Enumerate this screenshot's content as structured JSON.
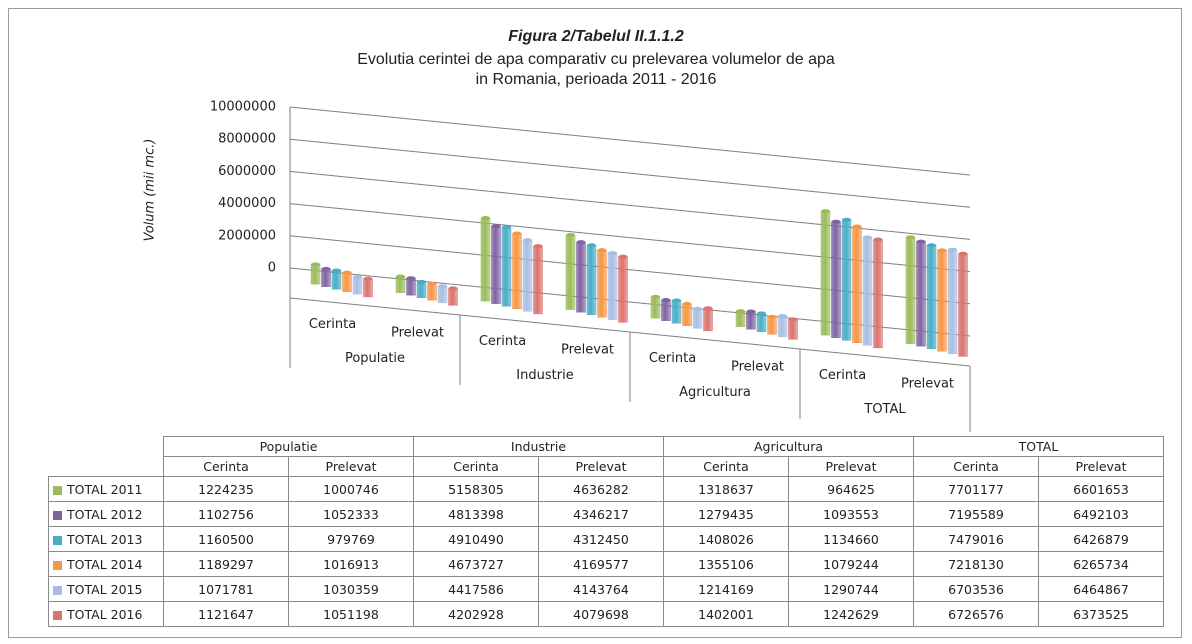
{
  "chart_data": {
    "type": "bar3d",
    "title": "Figura 2/Tabelul II.1.1.2",
    "subtitle": [
      "Evolutia cerintei de apa comparativ cu prelevarea volumelor de apa",
      "in Romania, perioada 2011 - 2016"
    ],
    "y_label": "Volum (mii mc.)",
    "groups": [
      "Populatie",
      "Industrie",
      "Agricultura",
      "TOTAL"
    ],
    "categories": [
      "Cerinta",
      "Prelevat",
      "Cerinta",
      "Prelevat",
      "Cerinta",
      "Prelevat",
      "Cerinta",
      "Prelevat"
    ],
    "ylim": [
      0,
      10000000
    ],
    "yticks": [
      0,
      2000000,
      4000000,
      6000000,
      8000000,
      10000000
    ],
    "grid": true,
    "series": [
      {
        "name": "TOTAL 2011",
        "color": "#9bbb59",
        "values": [
          1224235,
          1000746,
          5158305,
          4636282,
          1318637,
          964625,
          7701177,
          6601653
        ]
      },
      {
        "name": "TOTAL 2012",
        "color": "#8064a2",
        "values": [
          1102756,
          1052333,
          4813398,
          4346217,
          1279435,
          1093553,
          7195589,
          6492103
        ]
      },
      {
        "name": "TOTAL 2013",
        "color": "#4bacc6",
        "values": [
          1160500,
          979769,
          4910490,
          4312450,
          1408026,
          1134660,
          7479016,
          6426879
        ]
      },
      {
        "name": "TOTAL 2014",
        "color": "#f79646",
        "values": [
          1189297,
          1016913,
          4673727,
          4169577,
          1355106,
          1079244,
          7218130,
          6265734
        ]
      },
      {
        "name": "TOTAL 2015",
        "color": "#a9bde3",
        "values": [
          1071781,
          1030359,
          4417586,
          4143764,
          1214169,
          1290744,
          6703536,
          6464867
        ]
      },
      {
        "name": "TOTAL 2016",
        "color": "#d9736e",
        "values": [
          1121647,
          1051198,
          4202928,
          4079698,
          1402001,
          1242629,
          6726576,
          6373525
        ]
      }
    ]
  }
}
